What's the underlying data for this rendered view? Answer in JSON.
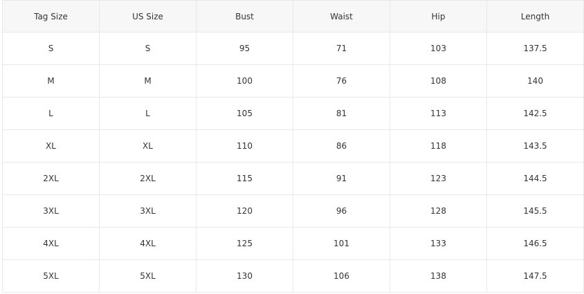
{
  "table": {
    "headers": [
      "Tag Size",
      "US Size",
      "Bust",
      "Waist",
      "Hip",
      "Length"
    ],
    "rows": [
      [
        "S",
        "S",
        "95",
        "71",
        "103",
        "137.5"
      ],
      [
        "M",
        "M",
        "100",
        "76",
        "108",
        "140"
      ],
      [
        "L",
        "L",
        "105",
        "81",
        "113",
        "142.5"
      ],
      [
        "XL",
        "XL",
        "110",
        "86",
        "118",
        "143.5"
      ],
      [
        "2XL",
        "2XL",
        "115",
        "91",
        "123",
        "144.5"
      ],
      [
        "3XL",
        "3XL",
        "120",
        "96",
        "128",
        "145.5"
      ],
      [
        "4XL",
        "4XL",
        "125",
        "101",
        "133",
        "146.5"
      ],
      [
        "5XL",
        "5XL",
        "130",
        "106",
        "138",
        "147.5"
      ]
    ]
  },
  "colors": {
    "header_bg": "#f7f7f7",
    "border": "#e8e8e8",
    "text": "#333333"
  }
}
